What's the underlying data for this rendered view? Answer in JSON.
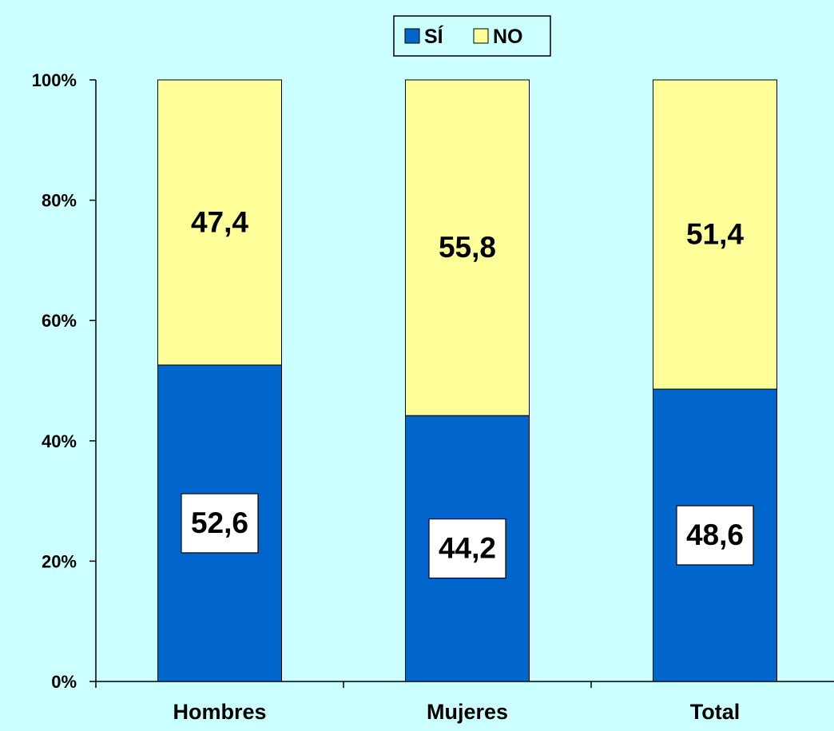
{
  "chart_data": {
    "type": "bar",
    "stacked": true,
    "percent_scale": true,
    "categories": [
      "Hombres",
      "Mujeres",
      "Total"
    ],
    "series": [
      {
        "name": "SÍ",
        "values": [
          52.6,
          44.2,
          48.6
        ],
        "labels": [
          "52,6",
          "44,2",
          "48,6"
        ],
        "color": "#0066cc"
      },
      {
        "name": "NO",
        "values": [
          47.4,
          55.8,
          51.4
        ],
        "labels": [
          "47,4",
          "55,8",
          "51,4"
        ],
        "color": "#ffff99"
      }
    ],
    "yticks": [
      "0%",
      "20%",
      "40%",
      "60%",
      "80%",
      "100%"
    ],
    "ylim": [
      0,
      100
    ],
    "grid": false,
    "legend": "top-center",
    "title": "",
    "xlabel": "",
    "ylabel": ""
  }
}
